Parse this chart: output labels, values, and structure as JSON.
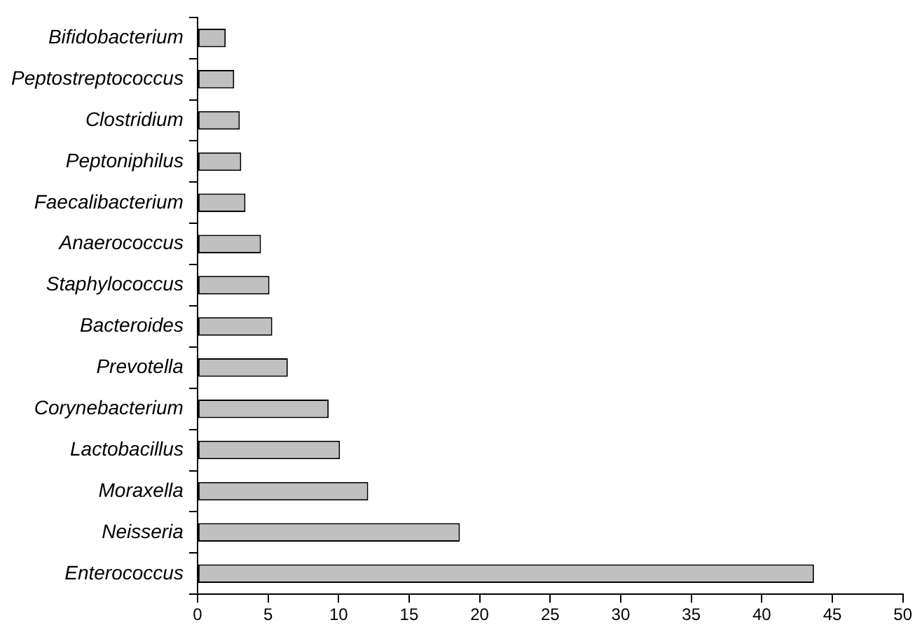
{
  "chart_data": {
    "type": "bar",
    "orientation": "horizontal",
    "categories": [
      "Bifidobacterium",
      "Peptostreptococcus",
      "Clostridium",
      "Peptoniphilus",
      "Faecalibacterium",
      "Anaerococcus",
      "Staphylococcus",
      "Bacteroides",
      "Prevotella",
      "Corynebacterium",
      "Lactobacillus",
      "Moraxella",
      "Neisseria",
      "Enterococcus"
    ],
    "values": [
      2.0,
      2.6,
      3.0,
      3.1,
      3.4,
      4.5,
      5.1,
      5.3,
      6.4,
      9.3,
      10.1,
      12.1,
      18.6,
      43.7
    ],
    "color": "#c0c0c0",
    "xlim": [
      0,
      50
    ],
    "xticks": [
      0,
      5,
      10,
      15,
      20,
      25,
      30,
      35,
      40,
      45,
      50
    ],
    "grid": false,
    "legend": false
  }
}
